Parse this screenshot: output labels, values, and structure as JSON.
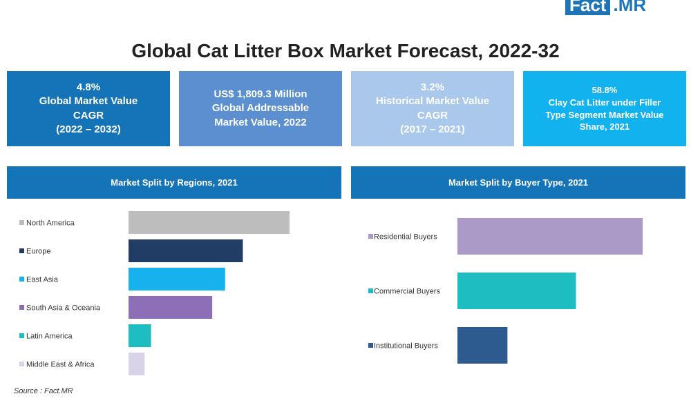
{
  "logo": {
    "part1": "Fact",
    "part2": ".MR"
  },
  "title": "Global Cat Litter Box Market Forecast, 2022-32",
  "kpis": [
    {
      "line1": "4.8%",
      "line2": "Global Market Value",
      "line3": "CAGR",
      "line4": "(2022 – 2032)"
    },
    {
      "line1": "US$ 1,809.3 Million",
      "line2": "Global Addressable",
      "line3": "Market Value, 2022"
    },
    {
      "line1": "3.2%",
      "line2": "Historical Market Value",
      "line3": "CAGR",
      "line4": "(2017 – 2021)"
    },
    {
      "line1": "58.8%",
      "line2": "Clay Cat Litter under Filler",
      "line3": "Type Segment Market Value",
      "line4": "Share, 2021"
    }
  ],
  "source": "Source : Fact.MR",
  "chart_data": [
    {
      "type": "bar",
      "orientation": "horizontal",
      "title": "Market Split by Regions, 2021",
      "categories": [
        "North America",
        "Europe",
        "East Asia",
        "South Asia & Oceania",
        "Latin America",
        "Middle East & Africa"
      ],
      "values": [
        100,
        71,
        60,
        52,
        14,
        10
      ],
      "colors": [
        "#bdbdbd",
        "#213d66",
        "#17b2ee",
        "#8c6fb7",
        "#1ebdc2",
        "#d9d3ea"
      ],
      "legend_placement": "left",
      "grid": false
    },
    {
      "type": "bar",
      "orientation": "horizontal",
      "title": "Market Split by Buyer Type, 2021",
      "categories": [
        "Residential Buyers",
        "Commercial Buyers",
        "Institutional Buyers"
      ],
      "values": [
        100,
        64,
        27
      ],
      "colors": [
        "#ab9ac8",
        "#1ebdc2",
        "#2e5b8f"
      ],
      "legend_placement": "left",
      "grid": false
    }
  ]
}
